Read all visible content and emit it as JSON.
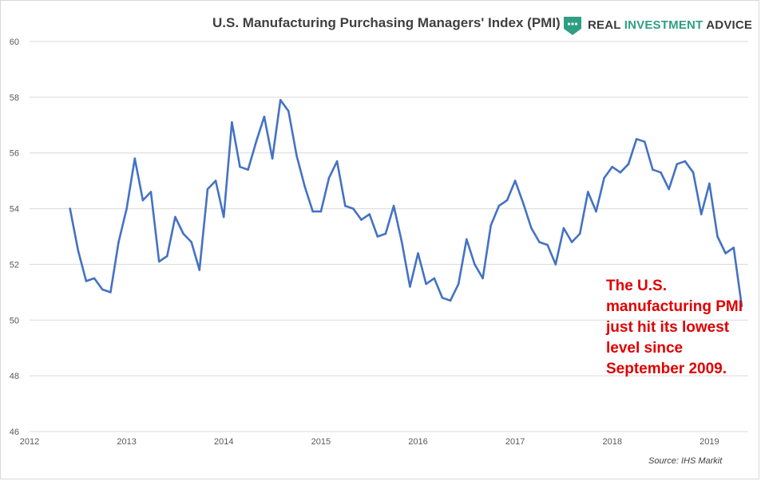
{
  "title": "U.S. Manufacturing Purchasing Managers' Index (PMI)",
  "logo": {
    "word1": "REAL",
    "word2": "INVESTMENT",
    "word3": "ADVICE",
    "icon": "chat-bubble-shield-icon",
    "brand_color": "#2f9e83"
  },
  "annotation": "The U.S. manufacturing PMI just hit its lowest level since September 2009.",
  "source": "Source: IHS Markit",
  "chart_data": {
    "type": "line",
    "title": "U.S. Manufacturing Purchasing Managers' Index (PMI)",
    "xlabel": "",
    "ylabel": "",
    "xlim": [
      2012,
      2019.4
    ],
    "ylim": [
      46,
      60
    ],
    "x_ticks": [
      "2012",
      "2013",
      "2014",
      "2015",
      "2016",
      "2017",
      "2018",
      "2019"
    ],
    "y_ticks": [
      "46",
      "48",
      "50",
      "52",
      "54",
      "56",
      "58",
      "60"
    ],
    "grid": "horizontal",
    "line_color": "#4472c4",
    "series": [
      {
        "name": "",
        "x": [
          "2012-06",
          "2012-07",
          "2012-08",
          "2012-09",
          "2012-10",
          "2012-11",
          "2012-12",
          "2013-01",
          "2013-02",
          "2013-03",
          "2013-04",
          "2013-05",
          "2013-06",
          "2013-07",
          "2013-08",
          "2013-09",
          "2013-10",
          "2013-11",
          "2013-12",
          "2014-01",
          "2014-02",
          "2014-03",
          "2014-04",
          "2014-05",
          "2014-06",
          "2014-07",
          "2014-08",
          "2014-09",
          "2014-10",
          "2014-11",
          "2014-12",
          "2015-01",
          "2015-02",
          "2015-03",
          "2015-04",
          "2015-05",
          "2015-06",
          "2015-07",
          "2015-08",
          "2015-09",
          "2015-10",
          "2015-11",
          "2015-12",
          "2016-01",
          "2016-02",
          "2016-03",
          "2016-04",
          "2016-05",
          "2016-06",
          "2016-07",
          "2016-08",
          "2016-09",
          "2016-10",
          "2016-11",
          "2016-12",
          "2017-01",
          "2017-02",
          "2017-03",
          "2017-04",
          "2017-05",
          "2017-06",
          "2017-07",
          "2017-08",
          "2017-09",
          "2017-10",
          "2017-11",
          "2017-12",
          "2018-01",
          "2018-02",
          "2018-03",
          "2018-04",
          "2018-05",
          "2018-06",
          "2018-07",
          "2018-08",
          "2018-09",
          "2018-10",
          "2018-11",
          "2018-12",
          "2019-01",
          "2019-02",
          "2019-03",
          "2019-04",
          "2019-05"
        ],
        "values": [
          54.0,
          52.5,
          51.4,
          51.5,
          51.1,
          51.0,
          52.8,
          54.0,
          55.8,
          54.3,
          54.6,
          52.1,
          52.3,
          53.7,
          53.1,
          52.8,
          51.8,
          54.7,
          55.0,
          53.7,
          57.1,
          55.5,
          55.4,
          56.4,
          57.3,
          55.8,
          57.9,
          57.5,
          55.9,
          54.8,
          53.9,
          53.9,
          55.1,
          55.7,
          54.1,
          54.0,
          53.6,
          53.8,
          53.0,
          53.1,
          54.1,
          52.8,
          51.2,
          52.4,
          51.3,
          51.5,
          50.8,
          50.7,
          51.3,
          52.9,
          52.0,
          51.5,
          53.4,
          54.1,
          54.3,
          55.0,
          54.2,
          53.3,
          52.8,
          52.7,
          52.0,
          53.3,
          52.8,
          53.1,
          54.6,
          53.9,
          55.1,
          55.5,
          55.3,
          55.6,
          56.5,
          56.4,
          55.4,
          55.3,
          54.7,
          55.6,
          55.7,
          55.3,
          53.8,
          54.9,
          53.0,
          52.4,
          52.6,
          50.5
        ]
      }
    ]
  }
}
